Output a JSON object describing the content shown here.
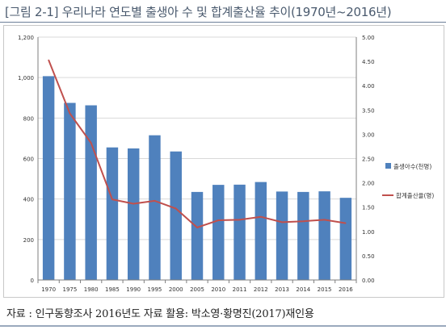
{
  "figure_title": "[그림 2-1] 우리나라 연도별 출생아 수 및 합계출산율 추이(1970년~2016년)",
  "source_note": "자료 : 인구동향조사 2016년도 자료 활용: 박소영·황명진(2017)재인용",
  "colors": {
    "bar": "#4f81bd",
    "line": "#c0504d",
    "grid": "#d9d9d9",
    "axis": "#7f7f7f"
  },
  "chart_data": {
    "type": "bar",
    "categories": [
      "1970",
      "1975",
      "1980",
      "1985",
      "1990",
      "1995",
      "2000",
      "2005",
      "2010",
      "2011",
      "2012",
      "2013",
      "2014",
      "2015",
      "2016"
    ],
    "series": [
      {
        "name": "출생아수(천명)",
        "type": "bar",
        "axis": "left",
        "values": [
          1007,
          875,
          863,
          655,
          650,
          715,
          635,
          435,
          470,
          471,
          484,
          437,
          435,
          438,
          406
        ]
      },
      {
        "name": "합계출산율(명)",
        "type": "line",
        "axis": "right",
        "values": [
          4.53,
          3.43,
          2.82,
          1.66,
          1.57,
          1.63,
          1.47,
          1.08,
          1.23,
          1.24,
          1.3,
          1.19,
          1.21,
          1.24,
          1.17
        ]
      }
    ],
    "y_left": {
      "ylim": [
        0,
        1200
      ],
      "ticks": [
        "0",
        "200",
        "400",
        "600",
        "800",
        "1,000",
        "1,200"
      ]
    },
    "y_right": {
      "ylim": [
        0,
        5
      ],
      "ticks": [
        "0.00",
        "0.50",
        "1.00",
        "1.50",
        "2.00",
        "2.50",
        "3.00",
        "3.50",
        "4.00",
        "4.50",
        "5.00"
      ]
    },
    "grid": true,
    "legend_position": "right"
  }
}
